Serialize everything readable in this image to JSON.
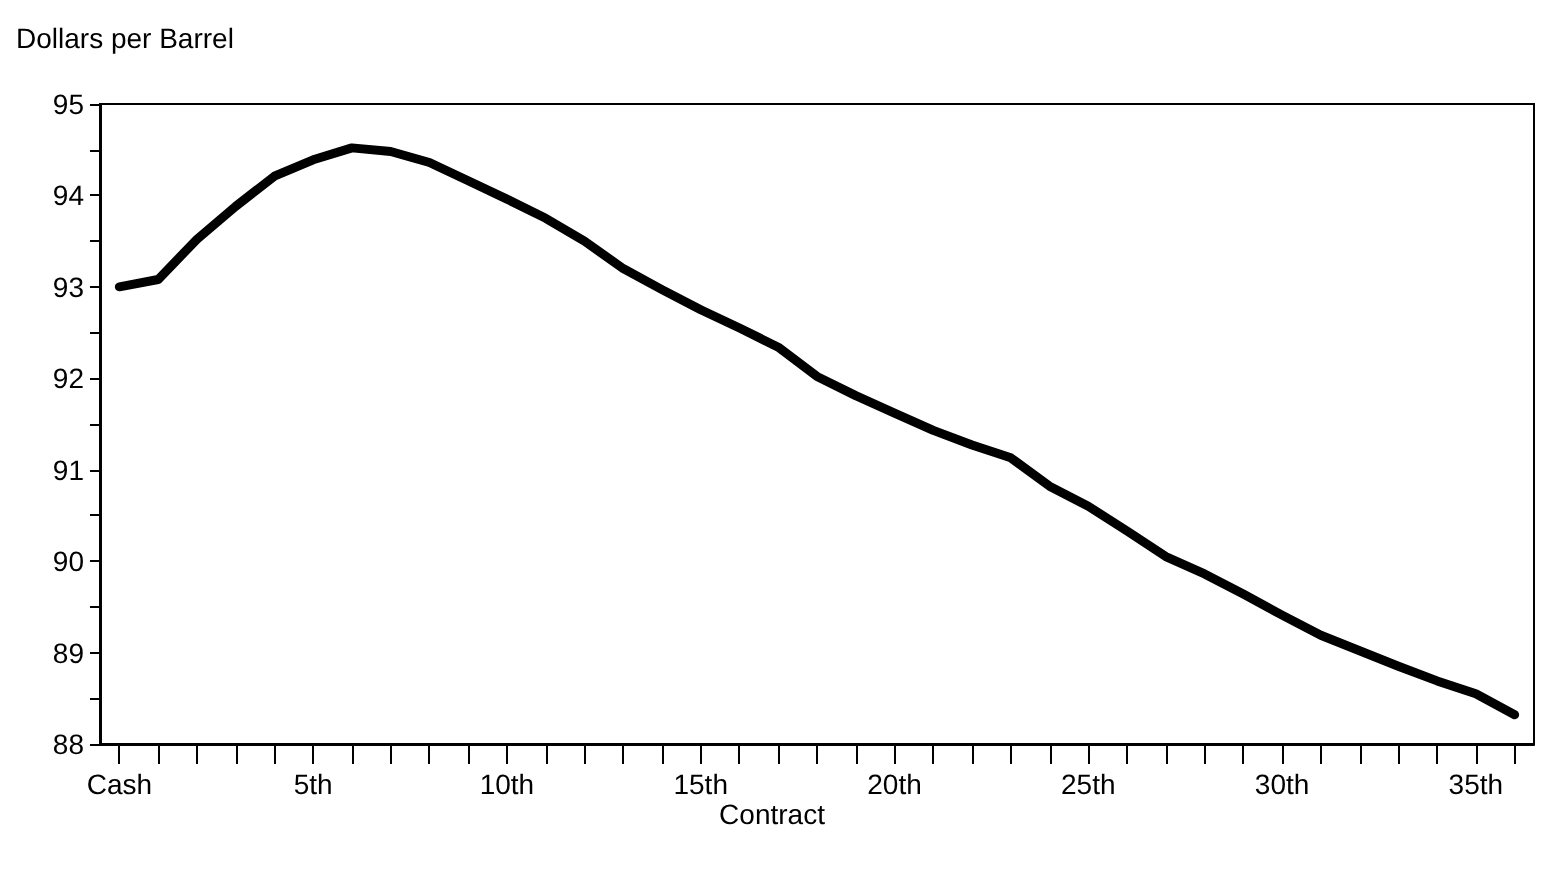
{
  "chart_data": {
    "type": "line",
    "ylabel": "Dollars per Barrel",
    "xlabel": "Contract",
    "categories": [
      "Cash",
      null,
      null,
      null,
      null,
      "5th",
      null,
      null,
      null,
      null,
      "10th",
      null,
      null,
      null,
      null,
      "15th",
      null,
      null,
      null,
      null,
      "20th",
      null,
      null,
      null,
      null,
      "25th",
      null,
      null,
      null,
      null,
      "30th",
      null,
      null,
      null,
      null,
      "35th",
      null
    ],
    "series": [
      {
        "color": "#000000",
        "values": [
          93.0,
          93.08,
          93.52,
          93.88,
          94.21,
          94.39,
          94.52,
          94.48,
          94.36,
          94.16,
          93.96,
          93.75,
          93.5,
          93.2,
          92.97,
          92.75,
          92.55,
          92.34,
          92.02,
          91.81,
          91.62,
          91.43,
          91.27,
          91.13,
          90.82,
          90.6,
          90.33,
          90.05,
          89.86,
          89.64,
          89.41,
          89.19,
          89.02,
          88.85,
          88.69,
          88.55,
          88.32
        ]
      }
    ],
    "ylim": [
      88,
      95
    ],
    "yticks": [
      88,
      {
        "value": 88.5,
        "label": null
      },
      89,
      {
        "value": 89.5,
        "label": null
      },
      90,
      {
        "value": 90.5,
        "label": null
      },
      91,
      {
        "value": 91.5,
        "label": null
      },
      92,
      {
        "value": 92.5,
        "label": null
      },
      93,
      {
        "value": 93.5,
        "label": null
      },
      94,
      {
        "value": 94.5,
        "label": null
      },
      95
    ],
    "grid": false,
    "marker": "none",
    "line_style": "solid"
  }
}
